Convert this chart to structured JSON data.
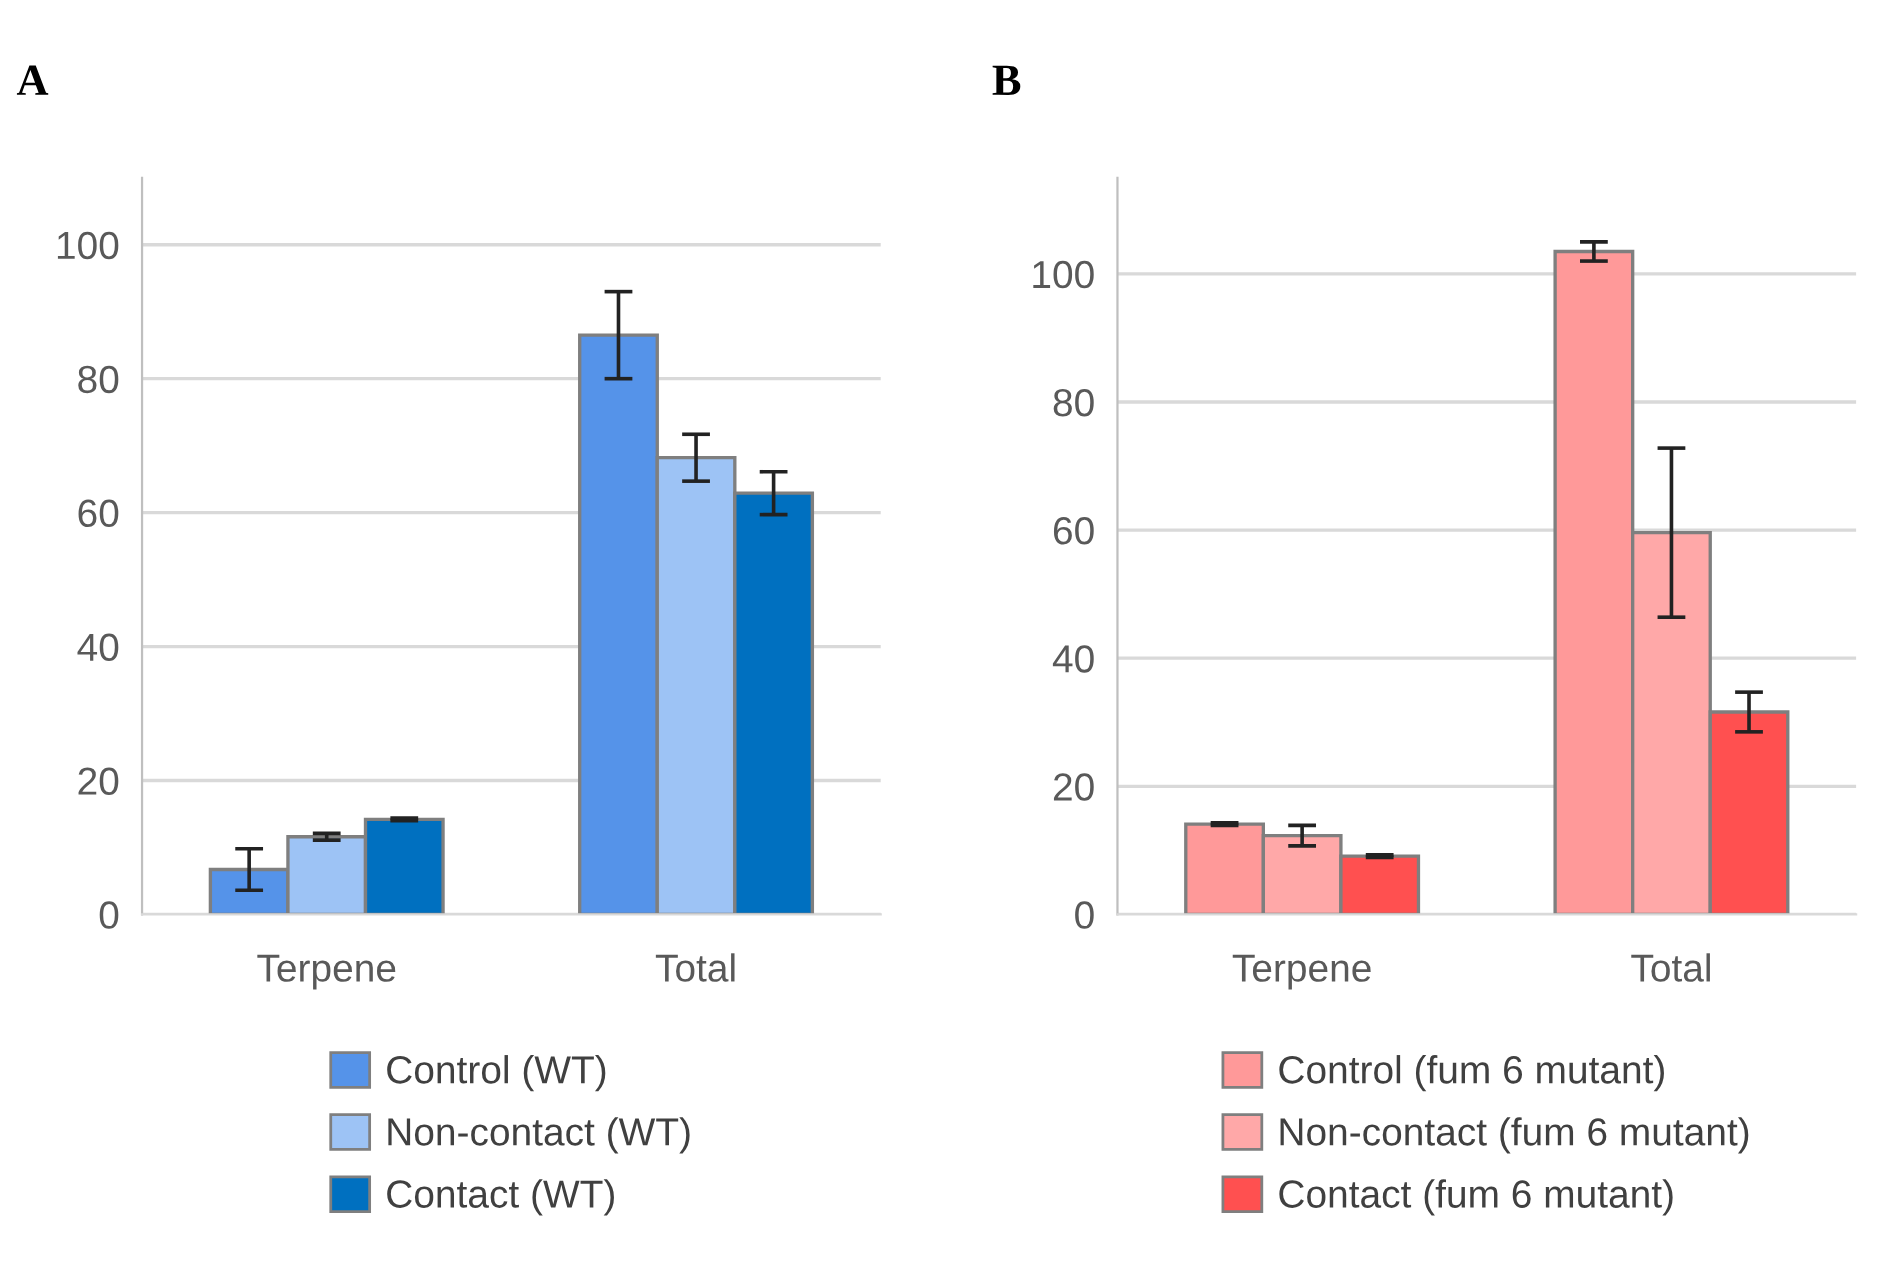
{
  "chart_data": [
    {
      "type": "bar",
      "title": "A",
      "categories": [
        "Terpene",
        "Total"
      ],
      "ylim": [
        0,
        110
      ],
      "yticks": [
        0,
        20,
        40,
        60,
        80,
        100
      ],
      "grid": "y",
      "legend": "bottom",
      "series": [
        {
          "name": "Control (WT)",
          "color": "#5593e9",
          "values": [
            6.7,
            86.5
          ],
          "errors": [
            3.1,
            6.5
          ]
        },
        {
          "name": "Non-contact (WT)",
          "color": "#9dc3f5",
          "values": [
            11.6,
            68.2
          ],
          "errors": [
            0.5,
            3.5
          ]
        },
        {
          "name": "Contact (WT)",
          "color": "#0070c0",
          "values": [
            14.2,
            62.9
          ],
          "errors": [
            0.2,
            3.2
          ]
        }
      ]
    },
    {
      "type": "bar",
      "title": "B",
      "categories": [
        "Terpene",
        "Total"
      ],
      "ylim": [
        0,
        115
      ],
      "yticks": [
        0,
        20,
        40,
        60,
        80,
        100
      ],
      "grid": "y",
      "legend": "bottom",
      "series": [
        {
          "name": "Control (fum 6 mutant)",
          "color": "#ff9999",
          "values": [
            14.1,
            103.5
          ],
          "errors": [
            0.2,
            1.5
          ]
        },
        {
          "name": "Non-contact (fum 6 mutant)",
          "color": "#ffa8a8",
          "values": [
            12.3,
            59.6
          ],
          "errors": [
            1.6,
            13.2
          ]
        },
        {
          "name": "Contact (fum 6 mutant)",
          "color": "#ff5050",
          "values": [
            9.1,
            31.6
          ],
          "errors": [
            0.2,
            3.1
          ]
        }
      ]
    }
  ]
}
